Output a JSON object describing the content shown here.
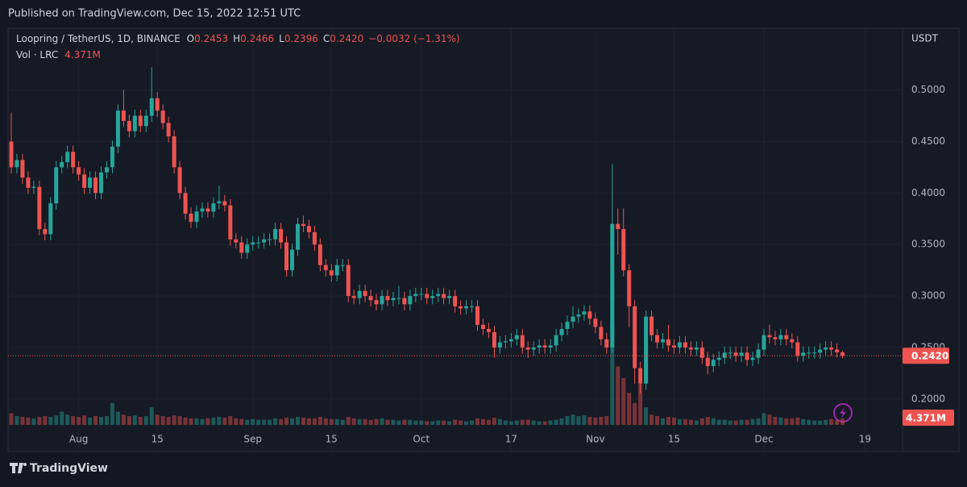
{
  "header": {
    "published": "Published on TradingView.com, Dec 15, 2022 12:51 UTC"
  },
  "footer": {
    "brand": "TradingView"
  },
  "chart_data": {
    "type": "candlestick",
    "title": "Loopring / TetherUS, 1D, BINANCE",
    "ohlc_legend": [
      {
        "key": "O",
        "label": "0.2453"
      },
      {
        "key": "H",
        "label": "0.2466"
      },
      {
        "key": "L",
        "label": "0.2396"
      },
      {
        "key": "C",
        "label": "0.2420"
      }
    ],
    "change_label": "−0.0032 (−1.31%)",
    "volume_title": "Vol · LRC",
    "volume_label": "4.371M",
    "y_axis_label": "USDT",
    "last_price_label": "0.2420",
    "up_color": "#26a69a",
    "down_color": "#ef5350",
    "grid": true,
    "ylim": [
      0.149,
      0.56
    ],
    "yticks": [
      {
        "value": 0.2,
        "label": "0.2000"
      },
      {
        "value": 0.25,
        "label": "0.2500"
      },
      {
        "value": 0.3,
        "label": "0.3000"
      },
      {
        "value": 0.35,
        "label": "0.3500"
      },
      {
        "value": 0.4,
        "label": "0.4000"
      },
      {
        "value": 0.45,
        "label": "0.4500"
      },
      {
        "value": 0.5,
        "label": "0.5000"
      }
    ],
    "xticks": [
      {
        "value": "Aug 1",
        "label": "Aug"
      },
      {
        "value": "Aug 15",
        "label": "15"
      },
      {
        "value": "Sep 1",
        "label": "Sep"
      },
      {
        "value": "Sep 15",
        "label": "15"
      },
      {
        "value": "Oct 1",
        "label": "Oct"
      },
      {
        "value": "Oct 17",
        "label": "17"
      },
      {
        "value": "Nov 1",
        "label": "Nov"
      },
      {
        "value": "Nov 15",
        "label": "15"
      },
      {
        "value": "Dec 1",
        "label": "Dec"
      },
      {
        "value": "Dec 19",
        "label": "19"
      }
    ],
    "x": [
      "Jul 20",
      "Jul 21",
      "Jul 22",
      "Jul 23",
      "Jul 24",
      "Jul 25",
      "Jul 26",
      "Jul 27",
      "Jul 28",
      "Jul 29",
      "Jul 30",
      "Jul 31",
      "Aug 1",
      "Aug 2",
      "Aug 3",
      "Aug 4",
      "Aug 5",
      "Aug 6",
      "Aug 7",
      "Aug 8",
      "Aug 9",
      "Aug 10",
      "Aug 11",
      "Aug 12",
      "Aug 13",
      "Aug 14",
      "Aug 15",
      "Aug 16",
      "Aug 17",
      "Aug 18",
      "Aug 19",
      "Aug 20",
      "Aug 21",
      "Aug 22",
      "Aug 23",
      "Aug 24",
      "Aug 25",
      "Aug 26",
      "Aug 27",
      "Aug 28",
      "Aug 29",
      "Aug 30",
      "Aug 31",
      "Sep 1",
      "Sep 2",
      "Sep 3",
      "Sep 4",
      "Sep 5",
      "Sep 6",
      "Sep 7",
      "Sep 8",
      "Sep 9",
      "Sep 10",
      "Sep 11",
      "Sep 12",
      "Sep 13",
      "Sep 14",
      "Sep 15",
      "Sep 16",
      "Sep 17",
      "Sep 18",
      "Sep 19",
      "Sep 20",
      "Sep 21",
      "Sep 22",
      "Sep 23",
      "Sep 24",
      "Sep 25",
      "Sep 26",
      "Sep 27",
      "Sep 28",
      "Sep 29",
      "Sep 30",
      "Oct 1",
      "Oct 2",
      "Oct 3",
      "Oct 4",
      "Oct 5",
      "Oct 6",
      "Oct 7",
      "Oct 8",
      "Oct 9",
      "Oct 10",
      "Oct 11",
      "Oct 12",
      "Oct 13",
      "Oct 14",
      "Oct 15",
      "Oct 16",
      "Oct 17",
      "Oct 18",
      "Oct 19",
      "Oct 20",
      "Oct 21",
      "Oct 22",
      "Oct 23",
      "Oct 24",
      "Oct 25",
      "Oct 26",
      "Oct 27",
      "Oct 28",
      "Oct 29",
      "Oct 30",
      "Oct 31",
      "Nov 1",
      "Nov 2",
      "Nov 3",
      "Nov 4",
      "Nov 5",
      "Nov 6",
      "Nov 7",
      "Nov 8",
      "Nov 9",
      "Nov 10",
      "Nov 11",
      "Nov 12",
      "Nov 13",
      "Nov 14",
      "Nov 15",
      "Nov 16",
      "Nov 17",
      "Nov 18",
      "Nov 19",
      "Nov 20",
      "Nov 21",
      "Nov 22",
      "Nov 23",
      "Nov 24",
      "Nov 25",
      "Nov 26",
      "Nov 27",
      "Nov 28",
      "Nov 29",
      "Nov 30",
      "Dec 1",
      "Dec 2",
      "Dec 3",
      "Dec 4",
      "Dec 5",
      "Dec 6",
      "Dec 7",
      "Dec 8",
      "Dec 9",
      "Dec 10",
      "Dec 11",
      "Dec 12",
      "Dec 13",
      "Dec 14",
      "Dec 15"
    ],
    "open": [
      0.45,
      0.425,
      0.432,
      0.415,
      0.405,
      0.406,
      0.365,
      0.36,
      0.39,
      0.425,
      0.43,
      0.44,
      0.425,
      0.418,
      0.405,
      0.415,
      0.4,
      0.42,
      0.425,
      0.445,
      0.48,
      0.47,
      0.46,
      0.475,
      0.465,
      0.475,
      0.492,
      0.48,
      0.468,
      0.455,
      0.425,
      0.4,
      0.38,
      0.372,
      0.382,
      0.385,
      0.382,
      0.39,
      0.392,
      0.388,
      0.355,
      0.352,
      0.342,
      0.35,
      0.352,
      0.352,
      0.355,
      0.355,
      0.365,
      0.352,
      0.325,
      0.345,
      0.37,
      0.368,
      0.362,
      0.35,
      0.33,
      0.325,
      0.32,
      0.33,
      0.33,
      0.3,
      0.298,
      0.305,
      0.3,
      0.296,
      0.292,
      0.3,
      0.296,
      0.298,
      0.298,
      0.292,
      0.3,
      0.302,
      0.302,
      0.298,
      0.3,
      0.302,
      0.298,
      0.3,
      0.29,
      0.288,
      0.29,
      0.29,
      0.272,
      0.268,
      0.265,
      0.25,
      0.255,
      0.256,
      0.258,
      0.262,
      0.25,
      0.248,
      0.25,
      0.252,
      0.25,
      0.252,
      0.262,
      0.268,
      0.275,
      0.28,
      0.282,
      0.285,
      0.278,
      0.27,
      0.258,
      0.25,
      0.37,
      0.365,
      0.325,
      0.29,
      0.23,
      0.215,
      0.28,
      0.262,
      0.255,
      0.258,
      0.252,
      0.25,
      0.255,
      0.25,
      0.248,
      0.25,
      0.24,
      0.232,
      0.238,
      0.24,
      0.245,
      0.245,
      0.242,
      0.245,
      0.238,
      0.24,
      0.248,
      0.262,
      0.26,
      0.258,
      0.262,
      0.258,
      0.255,
      0.242,
      0.245,
      0.245,
      0.245,
      0.248,
      0.25,
      0.248,
      0.2453
    ],
    "high": [
      0.478,
      0.438,
      0.438,
      0.421,
      0.412,
      0.412,
      0.371,
      0.396,
      0.431,
      0.436,
      0.446,
      0.446,
      0.431,
      0.424,
      0.421,
      0.421,
      0.426,
      0.431,
      0.451,
      0.486,
      0.5,
      0.476,
      0.481,
      0.481,
      0.481,
      0.522,
      0.498,
      0.486,
      0.474,
      0.461,
      0.431,
      0.406,
      0.386,
      0.388,
      0.391,
      0.391,
      0.396,
      0.407,
      0.398,
      0.394,
      0.361,
      0.358,
      0.356,
      0.358,
      0.358,
      0.361,
      0.361,
      0.371,
      0.371,
      0.358,
      0.351,
      0.376,
      0.378,
      0.374,
      0.368,
      0.356,
      0.336,
      0.331,
      0.336,
      0.336,
      0.336,
      0.306,
      0.311,
      0.311,
      0.306,
      0.302,
      0.306,
      0.306,
      0.304,
      0.31,
      0.304,
      0.306,
      0.308,
      0.308,
      0.308,
      0.306,
      0.308,
      0.308,
      0.306,
      0.306,
      0.296,
      0.296,
      0.296,
      0.296,
      0.278,
      0.274,
      0.271,
      0.261,
      0.262,
      0.264,
      0.268,
      0.268,
      0.256,
      0.256,
      0.258,
      0.258,
      0.258,
      0.268,
      0.274,
      0.281,
      0.29,
      0.288,
      0.291,
      0.291,
      0.284,
      0.276,
      0.264,
      0.428,
      0.385,
      0.385,
      0.331,
      0.296,
      0.236,
      0.286,
      0.286,
      0.268,
      0.264,
      0.272,
      0.258,
      0.261,
      0.261,
      0.256,
      0.256,
      0.256,
      0.246,
      0.244,
      0.246,
      0.251,
      0.251,
      0.251,
      0.251,
      0.251,
      0.246,
      0.254,
      0.268,
      0.272,
      0.266,
      0.268,
      0.268,
      0.264,
      0.261,
      0.251,
      0.251,
      0.251,
      0.254,
      0.256,
      0.256,
      0.254,
      0.2466
    ],
    "low": [
      0.419,
      0.419,
      0.409,
      0.399,
      0.399,
      0.359,
      0.354,
      0.354,
      0.384,
      0.419,
      0.424,
      0.419,
      0.412,
      0.399,
      0.399,
      0.394,
      0.394,
      0.414,
      0.419,
      0.439,
      0.464,
      0.454,
      0.454,
      0.459,
      0.459,
      0.469,
      0.474,
      0.462,
      0.449,
      0.419,
      0.394,
      0.374,
      0.366,
      0.366,
      0.376,
      0.376,
      0.376,
      0.384,
      0.382,
      0.349,
      0.346,
      0.336,
      0.336,
      0.344,
      0.346,
      0.346,
      0.349,
      0.349,
      0.346,
      0.319,
      0.319,
      0.339,
      0.362,
      0.356,
      0.344,
      0.324,
      0.319,
      0.314,
      0.314,
      0.324,
      0.294,
      0.292,
      0.292,
      0.294,
      0.29,
      0.286,
      0.286,
      0.29,
      0.29,
      0.292,
      0.286,
      0.286,
      0.294,
      0.296,
      0.292,
      0.292,
      0.294,
      0.292,
      0.292,
      0.284,
      0.282,
      0.282,
      0.284,
      0.266,
      0.262,
      0.259,
      0.24,
      0.244,
      0.249,
      0.25,
      0.252,
      0.244,
      0.24,
      0.242,
      0.244,
      0.244,
      0.244,
      0.246,
      0.256,
      0.262,
      0.269,
      0.274,
      0.276,
      0.272,
      0.264,
      0.252,
      0.244,
      0.245,
      0.34,
      0.319,
      0.27,
      0.215,
      0.205,
      0.209,
      0.256,
      0.249,
      0.249,
      0.246,
      0.244,
      0.244,
      0.244,
      0.242,
      0.242,
      0.234,
      0.224,
      0.226,
      0.232,
      0.234,
      0.239,
      0.236,
      0.236,
      0.232,
      0.232,
      0.234,
      0.242,
      0.254,
      0.252,
      0.252,
      0.252,
      0.249,
      0.236,
      0.236,
      0.239,
      0.239,
      0.239,
      0.242,
      0.242,
      0.2403,
      0.2396
    ],
    "close": [
      0.425,
      0.432,
      0.415,
      0.405,
      0.406,
      0.365,
      0.36,
      0.39,
      0.425,
      0.43,
      0.44,
      0.425,
      0.418,
      0.405,
      0.415,
      0.4,
      0.42,
      0.425,
      0.445,
      0.48,
      0.47,
      0.46,
      0.475,
      0.465,
      0.475,
      0.492,
      0.48,
      0.468,
      0.455,
      0.425,
      0.4,
      0.38,
      0.372,
      0.382,
      0.385,
      0.382,
      0.39,
      0.392,
      0.388,
      0.355,
      0.352,
      0.342,
      0.35,
      0.352,
      0.352,
      0.355,
      0.355,
      0.365,
      0.352,
      0.325,
      0.345,
      0.37,
      0.368,
      0.362,
      0.35,
      0.33,
      0.325,
      0.32,
      0.33,
      0.33,
      0.3,
      0.298,
      0.305,
      0.3,
      0.296,
      0.292,
      0.3,
      0.296,
      0.298,
      0.298,
      0.292,
      0.3,
      0.302,
      0.302,
      0.298,
      0.3,
      0.302,
      0.298,
      0.3,
      0.29,
      0.288,
      0.29,
      0.29,
      0.272,
      0.268,
      0.265,
      0.25,
      0.255,
      0.256,
      0.258,
      0.262,
      0.25,
      0.248,
      0.25,
      0.252,
      0.25,
      0.252,
      0.262,
      0.268,
      0.275,
      0.28,
      0.282,
      0.285,
      0.278,
      0.27,
      0.258,
      0.25,
      0.37,
      0.365,
      0.325,
      0.29,
      0.23,
      0.215,
      0.28,
      0.262,
      0.255,
      0.258,
      0.252,
      0.25,
      0.255,
      0.25,
      0.248,
      0.25,
      0.24,
      0.232,
      0.238,
      0.24,
      0.245,
      0.245,
      0.242,
      0.245,
      0.238,
      0.24,
      0.248,
      0.262,
      0.26,
      0.258,
      0.262,
      0.258,
      0.255,
      0.242,
      0.245,
      0.245,
      0.245,
      0.248,
      0.25,
      0.248,
      0.2453,
      0.242
    ],
    "volume": [
      8000000,
      6000000,
      5500000,
      5000000,
      4500000,
      5500000,
      6000000,
      5500000,
      6500000,
      9000000,
      7000000,
      6000000,
      5500000,
      6500000,
      5000000,
      6000000,
      5500000,
      6000000,
      15000000,
      9000000,
      7000000,
      6000000,
      6500000,
      5500000,
      6000000,
      12000000,
      7000000,
      6000000,
      5500000,
      6500000,
      6000000,
      5000000,
      4500000,
      4500000,
      4000000,
      4500000,
      5000000,
      5500000,
      5000000,
      6000000,
      4500000,
      4000000,
      3500000,
      4000000,
      3500000,
      3500000,
      3500000,
      4500000,
      4000000,
      5000000,
      4500000,
      5500000,
      5000000,
      4500000,
      4500000,
      5500000,
      4500000,
      4000000,
      4000000,
      3500000,
      5500000,
      4500000,
      4000000,
      4000000,
      3500000,
      4000000,
      4500000,
      3500000,
      3500000,
      3000000,
      3500000,
      3500000,
      3000000,
      3000000,
      2500000,
      2500000,
      3000000,
      3000000,
      2500000,
      3500000,
      3000000,
      2500000,
      3000000,
      4500000,
      4000000,
      3500000,
      5000000,
      4000000,
      3000000,
      2500000,
      3000000,
      3500000,
      3500000,
      3000000,
      2500000,
      2500000,
      3000000,
      3500000,
      4500000,
      6000000,
      7000000,
      6000000,
      6500000,
      5500000,
      5000000,
      5500000,
      6000000,
      70000000,
      40000000,
      32000000,
      22000000,
      15000000,
      28000000,
      12000000,
      7000000,
      6000000,
      4500000,
      5500000,
      5000000,
      4000000,
      4000000,
      3500000,
      3000000,
      4500000,
      5500000,
      4500000,
      3500000,
      3500000,
      3000000,
      3000000,
      3500000,
      3500000,
      4000000,
      4500000,
      8000000,
      7000000,
      5500000,
      5000000,
      4500000,
      4500000,
      5000000,
      4000000,
      3500000,
      3000000,
      3000000,
      3500000,
      4000000,
      3500000,
      4371000
    ]
  }
}
